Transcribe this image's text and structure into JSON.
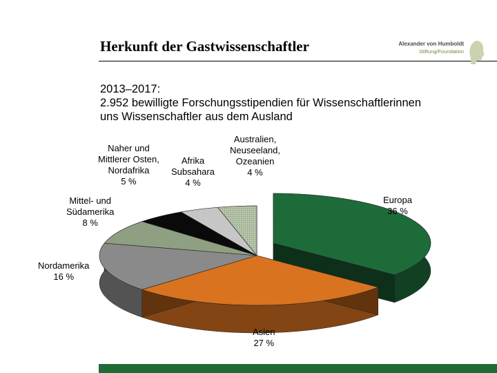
{
  "header": {
    "title": "Herkunft der Gastwissenschaftler",
    "logo_line1": "Alexander von Humboldt",
    "logo_line2": "Stiftung/Foundation"
  },
  "subtitle": {
    "line1": "2013–2017:",
    "line2": "2.952 bewilligte Forschungsstipendien für Wissenschaftlerinnen",
    "line3": "uns Wissenschaftler aus dem Ausland"
  },
  "chart_data": {
    "type": "pie",
    "style": "3d-exploded",
    "slices": [
      {
        "key": "europa",
        "label_lines": [
          "Europa",
          "36 %"
        ],
        "value": 36,
        "color": "#1e6b3a"
      },
      {
        "key": "asien",
        "label_lines": [
          "Asien",
          "27 %"
        ],
        "value": 27,
        "color": "#d9731f"
      },
      {
        "key": "nordamerika",
        "label_lines": [
          "Nordamerika",
          "16 %"
        ],
        "value": 16,
        "color": "#8a8a8a"
      },
      {
        "key": "mittel-suedamerika",
        "label_lines": [
          "Mittel- und",
          "Südamerika",
          "8 %"
        ],
        "value": 8,
        "color": "#8fa082"
      },
      {
        "key": "naher-osten",
        "label_lines": [
          "Naher und",
          "Mittlerer Osten,",
          "Nordafrika",
          "5 %"
        ],
        "value": 5,
        "color": "#0a0a0a"
      },
      {
        "key": "afrika",
        "label_lines": [
          "Afrika",
          "Subsahara",
          "4 %"
        ],
        "value": 4,
        "color": "#c6c6c6"
      },
      {
        "key": "australien",
        "label_lines": [
          "Australien,",
          "Neuseeland,",
          "Ozeanien",
          "4 %"
        ],
        "value": 4,
        "color": "#9aae8a"
      }
    ]
  }
}
